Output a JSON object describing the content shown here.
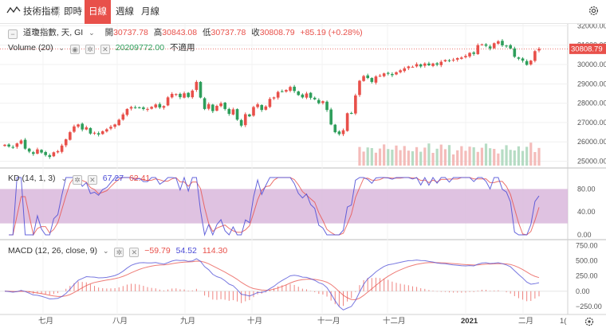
{
  "toolbar": {
    "indicators_label": "技術指標",
    "timeframes": [
      "即時",
      "日線",
      "週線",
      "月線"
    ],
    "active_timeframe": "日線",
    "settings_icon": "gear-icon"
  },
  "main_legend": {
    "collapse_icon": "minus-square-icon",
    "symbol": "道瓊指數, 天, GI",
    "open_label": "開",
    "open": "30737.78",
    "high_label": "高",
    "high": "30843.08",
    "low_label": "低",
    "low": "30737.78",
    "close_label": "收",
    "close": "30808.79",
    "change": "+85.19 (+0.28%)"
  },
  "volume_legend": {
    "label": "Volume (20)",
    "value": "20209772.00",
    "status": "不適用"
  },
  "price_axis": {
    "ticks": [
      "32000.00",
      "31000.00",
      "30000.00",
      "29000.00",
      "28000.00",
      "27000.00",
      "26000.00",
      "25000.00"
    ],
    "last_price": "30808.79",
    "min": 24650,
    "max": 32100
  },
  "kd": {
    "label": "KD (14, 1, 3)",
    "k_value": "67.27",
    "d_value": "62.41",
    "ticks": [
      "80.00",
      "40.00",
      "0.00"
    ],
    "k_color": "#4b4bd6",
    "d_color": "#e8504a",
    "band_color": "#d9b7dc"
  },
  "macd": {
    "label": "MACD (12, 26, close, 9)",
    "hist_value": "−59.79",
    "macd_value": "54.52",
    "signal_value": "114.30",
    "ticks": [
      "750.00",
      "500.00",
      "250.00",
      "0.00",
      "−250.00"
    ]
  },
  "time_axis": {
    "labels": [
      "七月",
      "八月",
      "九月",
      "十月",
      "十一月",
      "十二月",
      "2021",
      "二月"
    ],
    "edge_label": "1(",
    "fit_icon": "fit-screen-icon"
  },
  "colors": {
    "up": "#e8504a",
    "down": "#2e9e5b",
    "accent": "#e8504a"
  },
  "chart_data": {
    "type": "candlestick",
    "title": "道瓊指數, 天, GI",
    "last": {
      "open": 30737.78,
      "high": 30843.08,
      "low": 30737.78,
      "close": 30808.79,
      "change": 85.19,
      "change_pct": 0.28
    },
    "closes": [
      25850,
      25760,
      25720,
      25920,
      26070,
      25650,
      25500,
      25380,
      25610,
      25450,
      25320,
      25220,
      25460,
      25520,
      25810,
      26130,
      26500,
      26800,
      26900,
      26640,
      26750,
      26430,
      26470,
      26380,
      26550,
      26650,
      26780,
      26900,
      27140,
      27420,
      27700,
      27800,
      27750,
      27780,
      27700,
      27700,
      27810,
      27930,
      27780,
      27850,
      28300,
      28480,
      28470,
      28310,
      28510,
      28320,
      28650,
      29100,
      28290,
      27700,
      27950,
      27590,
      27860,
      27990,
      27700,
      27450,
      27680,
      27150,
      26840,
      27430,
      27320,
      27800,
      27940,
      27650,
      27830,
      28220,
      28300,
      28580,
      28600,
      28680,
      28840,
      28630,
      28420,
      28300,
      28500,
      28280,
      28200,
      28000,
      28100,
      27650,
      26900,
      26500,
      26400,
      26600,
      27480,
      27490,
      28400,
      29160,
      29400,
      29300,
      29100,
      29380,
      29420,
      29540,
      29520,
      29450,
      29600,
      29700,
      29800,
      29900,
      29880,
      30020,
      29900,
      30050,
      29960,
      30050,
      29990,
      30140,
      30230,
      30180,
      30250,
      30330,
      30360,
      30440,
      30600,
      30550,
      31000,
      31040,
      30970,
      30830,
      31100,
      31200,
      30990,
      30960,
      30830,
      30400,
      30300,
      30200,
      29980,
      30200,
      30690,
      30808.79
    ],
    "volume_value": 20209772.0,
    "kd": {
      "k": 67.27,
      "d": 62.41,
      "range": [
        0,
        100
      ],
      "band": [
        20,
        80
      ]
    },
    "macd": {
      "macd": 54.52,
      "signal": 114.3,
      "histogram": -59.79,
      "range": [
        -330,
        770
      ]
    },
    "x_labels": [
      "七月",
      "八月",
      "九月",
      "十月",
      "十一月",
      "十二月",
      "2021",
      "二月"
    ]
  }
}
